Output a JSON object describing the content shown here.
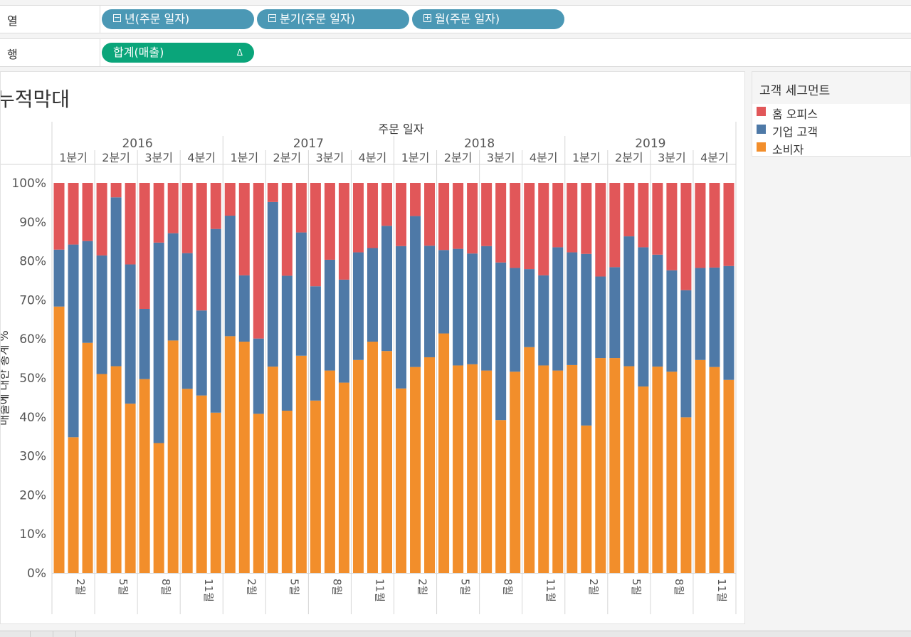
{
  "shelves": {
    "columns": {
      "label": "열",
      "pills": [
        {
          "label": "년(주문 일자)",
          "icon": "minus-box-icon"
        },
        {
          "label": "분기(주문 일자)",
          "icon": "minus-box-icon"
        },
        {
          "label": "월(주문 일자)",
          "icon": "plus-box-icon"
        }
      ]
    },
    "rows": {
      "label": "행",
      "pills": [
        {
          "label": "합계(매출)",
          "badge": "Δ"
        }
      ]
    }
  },
  "legend": {
    "title": "고객 세그먼트",
    "items": [
      {
        "label": "홈 오피스",
        "color": "#e15759"
      },
      {
        "label": "기업 고객",
        "color": "#4e79a7"
      },
      {
        "label": "소비자",
        "color": "#f28e2b"
      }
    ]
  },
  "chart_data": {
    "type": "bar",
    "stacked": true,
    "title": "누적막대",
    "xlabel": "주문 일자",
    "ylabel": "매출에 대한 총계 %",
    "ylim": [
      0,
      100
    ],
    "yticks": [
      "0%",
      "10%",
      "20%",
      "30%",
      "40%",
      "50%",
      "60%",
      "70%",
      "80%",
      "90%",
      "100%"
    ],
    "years": [
      "2016",
      "2017",
      "2018",
      "2019"
    ],
    "quarters": [
      "1분기",
      "2분기",
      "3분기",
      "4분기"
    ],
    "month_tick_labels": [
      "2월",
      "5월",
      "8월",
      "11월"
    ],
    "categories": [
      "2016-01",
      "2016-02",
      "2016-03",
      "2016-04",
      "2016-05",
      "2016-06",
      "2016-07",
      "2016-08",
      "2016-09",
      "2016-10",
      "2016-11",
      "2016-12",
      "2017-01",
      "2017-02",
      "2017-03",
      "2017-04",
      "2017-05",
      "2017-06",
      "2017-07",
      "2017-08",
      "2017-09",
      "2017-10",
      "2017-11",
      "2017-12",
      "2018-01",
      "2018-02",
      "2018-03",
      "2018-04",
      "2018-05",
      "2018-06",
      "2018-07",
      "2018-08",
      "2018-09",
      "2018-10",
      "2018-11",
      "2018-12",
      "2019-01",
      "2019-02",
      "2019-03",
      "2019-04",
      "2019-05",
      "2019-06",
      "2019-07",
      "2019-08",
      "2019-09",
      "2019-10",
      "2019-11",
      "2019-12"
    ],
    "series": [
      {
        "name": "소비자",
        "color": "#f28e2b",
        "values": [
          68.3,
          34.8,
          59.0,
          51.0,
          53.0,
          43.4,
          49.7,
          33.3,
          59.6,
          47.2,
          45.5,
          41.1,
          60.7,
          59.3,
          40.8,
          52.9,
          41.6,
          55.7,
          44.2,
          51.9,
          48.8,
          54.6,
          59.3,
          56.9,
          47.3,
          52.8,
          55.3,
          61.4,
          53.2,
          53.5,
          51.9,
          39.2,
          51.6,
          57.9,
          53.2,
          51.9,
          53.3,
          37.8,
          55.1,
          55.1,
          53.0,
          47.8,
          52.9,
          51.6,
          39.9,
          54.6,
          52.8,
          49.5
        ]
      },
      {
        "name": "기업 고객",
        "color": "#4e79a7",
        "values": [
          14.6,
          49.4,
          26.1,
          30.4,
          43.3,
          35.7,
          18.0,
          51.4,
          27.5,
          34.8,
          21.8,
          47.1,
          30.9,
          17.0,
          19.3,
          42.2,
          34.6,
          31.6,
          29.3,
          28.4,
          26.4,
          27.6,
          24.0,
          32.1,
          36.5,
          38.7,
          28.6,
          21.4,
          29.9,
          28.4,
          31.9,
          40.4,
          26.6,
          20.0,
          23.1,
          31.6,
          28.9,
          44.0,
          20.9,
          23.3,
          33.3,
          35.7,
          28.7,
          26.0,
          32.6,
          23.6,
          25.5,
          29.2
        ]
      },
      {
        "name": "홈 오피스",
        "color": "#e15759",
        "values": [
          17.1,
          15.8,
          14.9,
          18.6,
          3.7,
          20.9,
          32.3,
          15.3,
          12.9,
          18.0,
          32.7,
          11.8,
          8.4,
          23.7,
          39.9,
          4.9,
          23.8,
          12.7,
          26.5,
          19.7,
          24.8,
          17.8,
          16.7,
          11.0,
          16.2,
          8.5,
          16.1,
          17.2,
          16.9,
          18.1,
          16.2,
          20.4,
          21.8,
          22.1,
          23.7,
          16.5,
          17.8,
          18.2,
          24.0,
          21.6,
          13.7,
          16.5,
          18.4,
          22.4,
          27.5,
          21.8,
          21.7,
          21.3
        ]
      }
    ]
  }
}
